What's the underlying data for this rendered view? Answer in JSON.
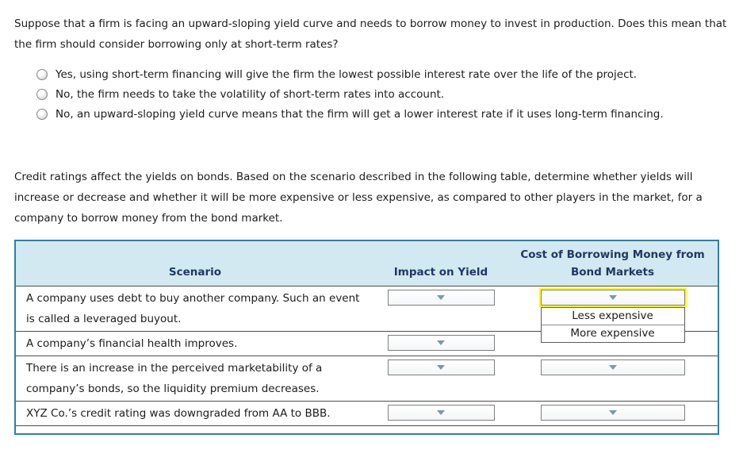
{
  "question1": {
    "text": "Suppose that a firm is facing an upward-sloping yield curve and needs to borrow money to invest in production. Does this mean that the firm should consider borrowing only at short-term rates?",
    "options": [
      {
        "label": "Yes, using short-term financing will give the firm the lowest possible interest rate over the life of the project."
      },
      {
        "label": "No, the firm needs to take the volatility of short-term rates into account."
      },
      {
        "label": "No, an upward-sloping yield curve means that the firm will get a lower interest rate if it uses long-term financing."
      }
    ]
  },
  "question2": {
    "text": "Credit ratings affect the yields on bonds. Based on the scenario described in the following table, determine whether yields will increase or decrease and whether it will be more expensive or less expensive, as compared to other players in the market, for a company to borrow money from the bond market."
  },
  "table": {
    "headers": {
      "scenario": "Scenario",
      "impact": "Impact on Yield",
      "cost_line1": "Cost of Borrowing Money from",
      "cost_line2": "Bond Markets"
    },
    "rows": [
      {
        "scenario": "A company uses debt to buy another company. Such an event is called a leveraged buyout."
      },
      {
        "scenario": "A company’s financial health improves."
      },
      {
        "scenario": "There is an increase in the perceived marketability of a company’s bonds, so the liquidity premium decreases."
      },
      {
        "scenario": "XYZ Co.’s credit rating was downgraded from AA to BBB."
      }
    ],
    "open_dropdown": {
      "options": [
        "Less expensive",
        "More expensive"
      ]
    }
  },
  "colors": {
    "table_border": "#2f7fa3",
    "header_background": "#d2e9f2",
    "header_text": "#1f3864",
    "highlight": "#ffff00",
    "dropdown_arrow": "#7b99a9"
  }
}
